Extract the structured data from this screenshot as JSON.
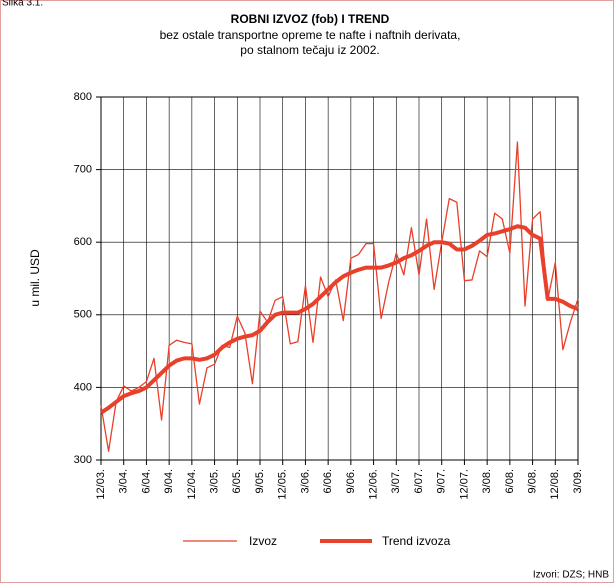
{
  "chart_data": {
    "type": "line",
    "figure_label": "Slika 3.1.",
    "title": "ROBNI IZVOZ (fob) I TREND",
    "subtitle": [
      "bez ostale transportne opreme te nafte i naftnih derivata,",
      "po stalnom tečaju iz 2002."
    ],
    "y_label": "u mil. USD",
    "source": "Izvori: DZS; HNB",
    "categories": [
      "12/03.",
      null,
      null,
      "3/04.",
      null,
      null,
      "6/04.",
      null,
      null,
      "9/04.",
      null,
      null,
      "12/04.",
      null,
      null,
      "3/05.",
      null,
      null,
      "6/05.",
      null,
      null,
      "9/05.",
      null,
      null,
      "12/05.",
      null,
      null,
      "3/06.",
      null,
      null,
      "6/06.",
      null,
      null,
      "9/06.",
      null,
      null,
      "12/06.",
      null,
      null,
      "3/07.",
      null,
      null,
      "6/07.",
      null,
      null,
      "9/07.",
      null,
      null,
      "12/07.",
      null,
      null,
      "3/08.",
      null,
      null,
      "6/08.",
      null,
      null,
      "9/08.",
      null,
      null,
      "12/08.",
      null,
      null,
      "3/09."
    ],
    "series": [
      {
        "name": "Izvoz",
        "color": "#e8402a",
        "width": 1.3,
        "values": [
          375,
          312,
          380,
          402,
          395,
          400,
          408,
          440,
          355,
          458,
          465,
          462,
          460,
          377,
          427,
          432,
          458,
          455,
          498,
          475,
          405,
          505,
          490,
          520,
          525,
          460,
          463,
          540,
          462,
          552,
          525,
          548,
          492,
          578,
          583,
          598,
          598,
          495,
          545,
          585,
          555,
          620,
          555,
          632,
          535,
          600,
          660,
          655,
          547,
          548,
          588,
          580,
          640,
          632,
          585,
          738,
          512,
          632,
          642,
          520,
          572,
          452,
          490,
          522
        ]
      },
      {
        "name": "Trend izvoza",
        "color": "#e8402a",
        "width": 4,
        "values": [
          365,
          372,
          380,
          388,
          392,
          395,
          400,
          410,
          420,
          430,
          437,
          440,
          440,
          438,
          440,
          445,
          455,
          462,
          467,
          470,
          472,
          478,
          490,
          500,
          503,
          503,
          503,
          508,
          515,
          525,
          535,
          545,
          553,
          558,
          562,
          565,
          565,
          565,
          568,
          572,
          578,
          582,
          588,
          595,
          600,
          600,
          598,
          590,
          590,
          595,
          602,
          610,
          612,
          615,
          618,
          622,
          620,
          610,
          605,
          522,
          522,
          518,
          512,
          508
        ]
      }
    ],
    "ylim": [
      300,
      800
    ],
    "yticks": [
      300,
      400,
      500,
      600,
      700,
      800
    ],
    "grid": true
  }
}
